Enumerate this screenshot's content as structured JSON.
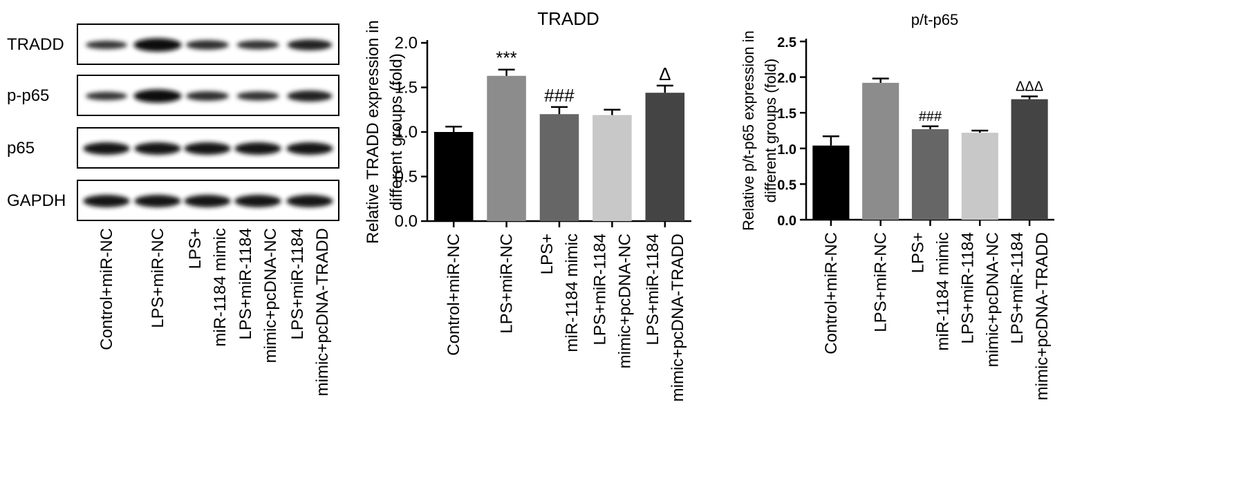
{
  "blot": {
    "lanes": [
      "Control+miR-NC",
      "LPS+miR-NC",
      "LPS+ miR-1184 mimic",
      "LPS+miR-1184 mimic+pcDNA-NC",
      "LPS+miR-1184 mimic+pcDNA-TRADD"
    ],
    "lane_label_lines": [
      [
        "Control+miR-NC"
      ],
      [
        "LPS+miR-NC"
      ],
      [
        "LPS+",
        "miR-1184 mimic"
      ],
      [
        "LPS+miR-1184",
        "mimic+pcDNA-NC"
      ],
      [
        "LPS+miR-1184",
        "mimic+pcDNA-TRADD"
      ]
    ],
    "rows": [
      {
        "label": "TRADD",
        "intensity": [
          0.45,
          0.95,
          0.55,
          0.5,
          0.7
        ]
      },
      {
        "label": "p-p65",
        "intensity": [
          0.45,
          0.95,
          0.55,
          0.5,
          0.72
        ]
      },
      {
        "label": "p65",
        "intensity": [
          0.85,
          0.85,
          0.85,
          0.85,
          0.85
        ]
      },
      {
        "label": "GAPDH",
        "intensity": [
          0.85,
          0.85,
          0.85,
          0.85,
          0.85
        ]
      }
    ]
  },
  "chart_data": [
    {
      "type": "bar",
      "title": "TRADD",
      "ylabel_lines": [
        "Relative TRADD expression in",
        "different groups (fold)"
      ],
      "ylim": [
        0,
        2.0
      ],
      "yticks": [
        "0.0",
        "0.5",
        "1.0",
        "1.5",
        "2.0"
      ],
      "categories": [
        "Control+miR-NC",
        "LPS+miR-NC",
        "LPS+ miR-1184 mimic",
        "LPS+miR-1184 mimic+pcDNA-NC",
        "LPS+miR-1184 mimic+pcDNA-TRADD"
      ],
      "category_lines": [
        [
          "Control+miR-NC"
        ],
        [
          "LPS+miR-NC"
        ],
        [
          "LPS+",
          "miR-1184 mimic"
        ],
        [
          "LPS+miR-1184",
          "mimic+pcDNA-NC"
        ],
        [
          "LPS+miR-1184",
          "mimic+pcDNA-TRADD"
        ]
      ],
      "values": [
        1.0,
        1.63,
        1.2,
        1.19,
        1.44
      ],
      "errors": [
        0.06,
        0.07,
        0.08,
        0.06,
        0.08
      ],
      "annotations": [
        "",
        "***",
        "###",
        "",
        "Δ"
      ],
      "bar_colors": [
        "#000000",
        "#8c8c8c",
        "#666666",
        "#c8c8c8",
        "#444444"
      ]
    },
    {
      "type": "bar",
      "title": "p/t-p65",
      "ylabel_lines": [
        "Relative p/t-p65 expression in",
        "different groups (fold)"
      ],
      "ylim": [
        0,
        2.5
      ],
      "yticks": [
        "0.0",
        "0.5",
        "1.0",
        "1.5",
        "2.0",
        "2.5"
      ],
      "categories": [
        "Control+miR-NC",
        "LPS+miR-NC",
        "LPS+ miR-1184 mimic",
        "LPS+miR-1184 mimic+pcDNA-NC",
        "LPS+miR-1184 mimic+pcDNA-TRADD"
      ],
      "category_lines": [
        [
          "Control+miR-NC"
        ],
        [
          "LPS+miR-NC"
        ],
        [
          "LPS+",
          "miR-1184 mimic"
        ],
        [
          "LPS+miR-1184",
          "mimic+pcDNA-NC"
        ],
        [
          "LPS+miR-1184",
          "mimic+pcDNA-TRADD"
        ]
      ],
      "values": [
        1.04,
        1.92,
        1.27,
        1.22,
        1.69
      ],
      "errors": [
        0.13,
        0.06,
        0.04,
        0.03,
        0.04
      ],
      "annotations": [
        "",
        "",
        "###",
        "",
        "ΔΔΔ"
      ],
      "bar_colors": [
        "#000000",
        "#8c8c8c",
        "#666666",
        "#c8c8c8",
        "#444444"
      ]
    }
  ]
}
